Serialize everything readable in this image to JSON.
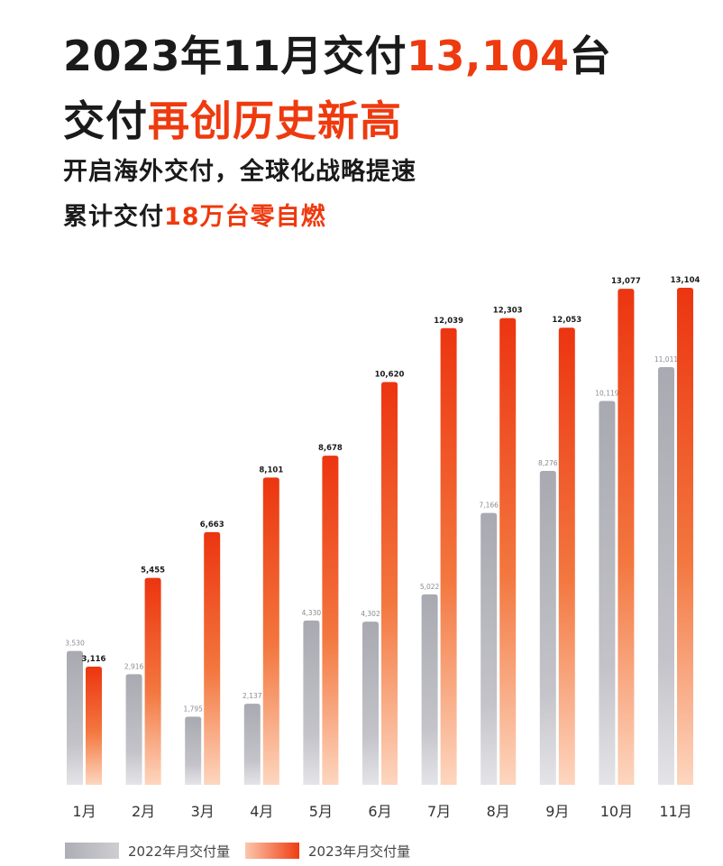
{
  "header": {
    "line1_pre": "2023年11月交付",
    "line1_num": "13,104",
    "line1_post": "台",
    "line2_pre": "交付",
    "line2_accent": "再创历史新高",
    "sub1": "开启海外交付，全球化战略提速",
    "sub2_pre": "累计交付",
    "sub2_accent": "18万台零自燃"
  },
  "colors": {
    "accent": "#ee3a0f",
    "bar_2022_top": "#a9a9b1",
    "bar_2022_bottom": "#e4e4e8",
    "bar_2023_top": "#ec3510",
    "bar_2023_bottom": "#fdd6bf"
  },
  "chart_data": {
    "type": "bar",
    "categories": [
      "1月",
      "2月",
      "3月",
      "4月",
      "5月",
      "6月",
      "7月",
      "8月",
      "9月",
      "10月",
      "11月"
    ],
    "series": [
      {
        "name": "2022年月交付量",
        "values": [
          3530,
          2916,
          1795,
          2137,
          4330,
          4302,
          5022,
          7166,
          8276,
          10119,
          11011
        ],
        "labels": [
          "3,530",
          "2,916",
          "1,795",
          "2,137",
          "4,330",
          "4,302",
          "5,022",
          "7,166",
          "8,276",
          "10,119",
          "11,011"
        ]
      },
      {
        "name": "2023年月交付量",
        "values": [
          3116,
          5455,
          6663,
          8101,
          8678,
          10620,
          12039,
          12303,
          12053,
          13077,
          13104
        ],
        "labels": [
          "3,116",
          "5,455",
          "6,663",
          "8,101",
          "8,678",
          "10,620",
          "12,039",
          "12,303",
          "12,053",
          "13,077",
          "13,104"
        ]
      }
    ],
    "grid": false,
    "legend_position": "bottom-left"
  }
}
